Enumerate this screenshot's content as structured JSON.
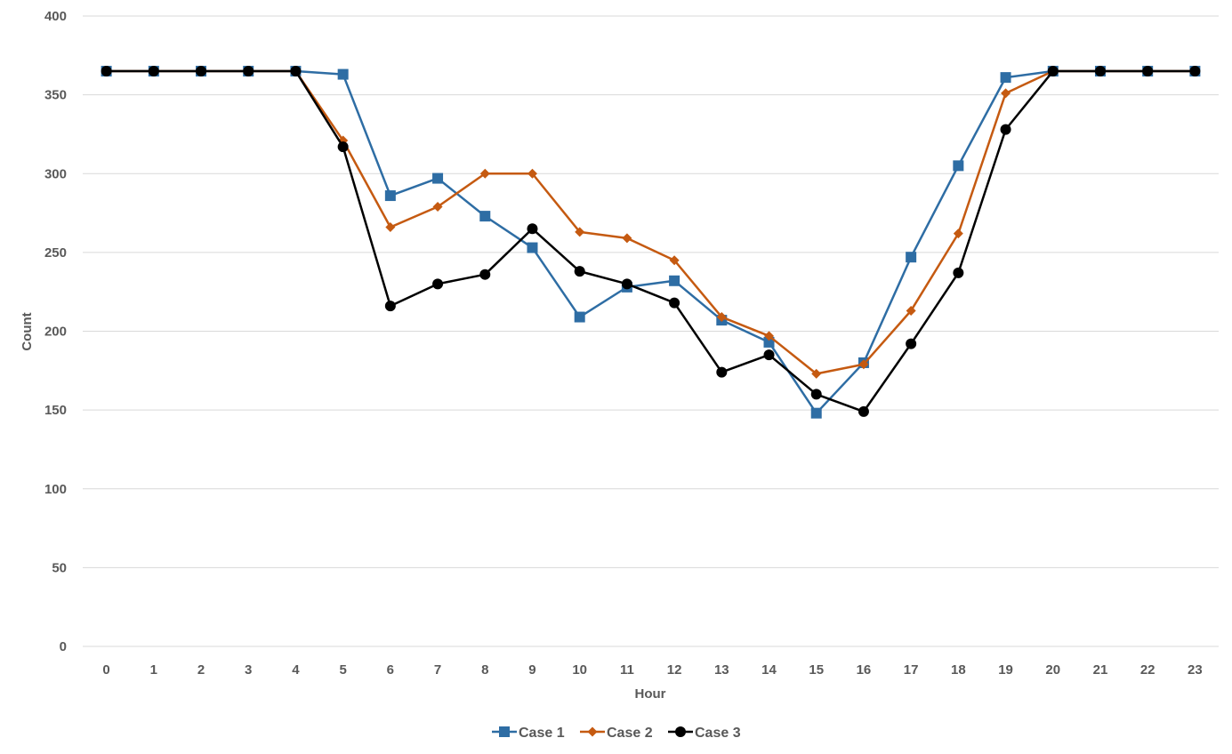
{
  "chart_data": {
    "type": "line",
    "title": "",
    "xlabel": "Hour",
    "ylabel": "Count",
    "x": [
      0,
      1,
      2,
      3,
      4,
      5,
      6,
      7,
      8,
      9,
      10,
      11,
      12,
      13,
      14,
      15,
      16,
      17,
      18,
      19,
      20,
      21,
      22,
      23
    ],
    "ylim": [
      0,
      400
    ],
    "yticks": [
      0,
      50,
      100,
      150,
      200,
      250,
      300,
      350,
      400
    ],
    "grid": true,
    "legend_position": "bottom",
    "series": [
      {
        "name": "Case 1",
        "color": "#2E6DA4",
        "marker": "square",
        "values": [
          365,
          365,
          365,
          365,
          365,
          363,
          286,
          297,
          273,
          253,
          209,
          228,
          232,
          207,
          193,
          148,
          180,
          247,
          305,
          361,
          365,
          365,
          365,
          365
        ]
      },
      {
        "name": "Case 2",
        "color": "#C55A11",
        "marker": "diamond",
        "values": [
          365,
          365,
          365,
          365,
          365,
          321,
          266,
          279,
          300,
          300,
          263,
          259,
          245,
          209,
          197,
          173,
          179,
          213,
          262,
          351,
          365,
          365,
          365,
          365
        ]
      },
      {
        "name": "Case 3",
        "color": "#000000",
        "marker": "circle",
        "values": [
          365,
          365,
          365,
          365,
          365,
          317,
          216,
          230,
          236,
          265,
          238,
          230,
          218,
          174,
          185,
          160,
          149,
          192,
          237,
          328,
          365,
          365,
          365,
          365
        ]
      }
    ]
  }
}
